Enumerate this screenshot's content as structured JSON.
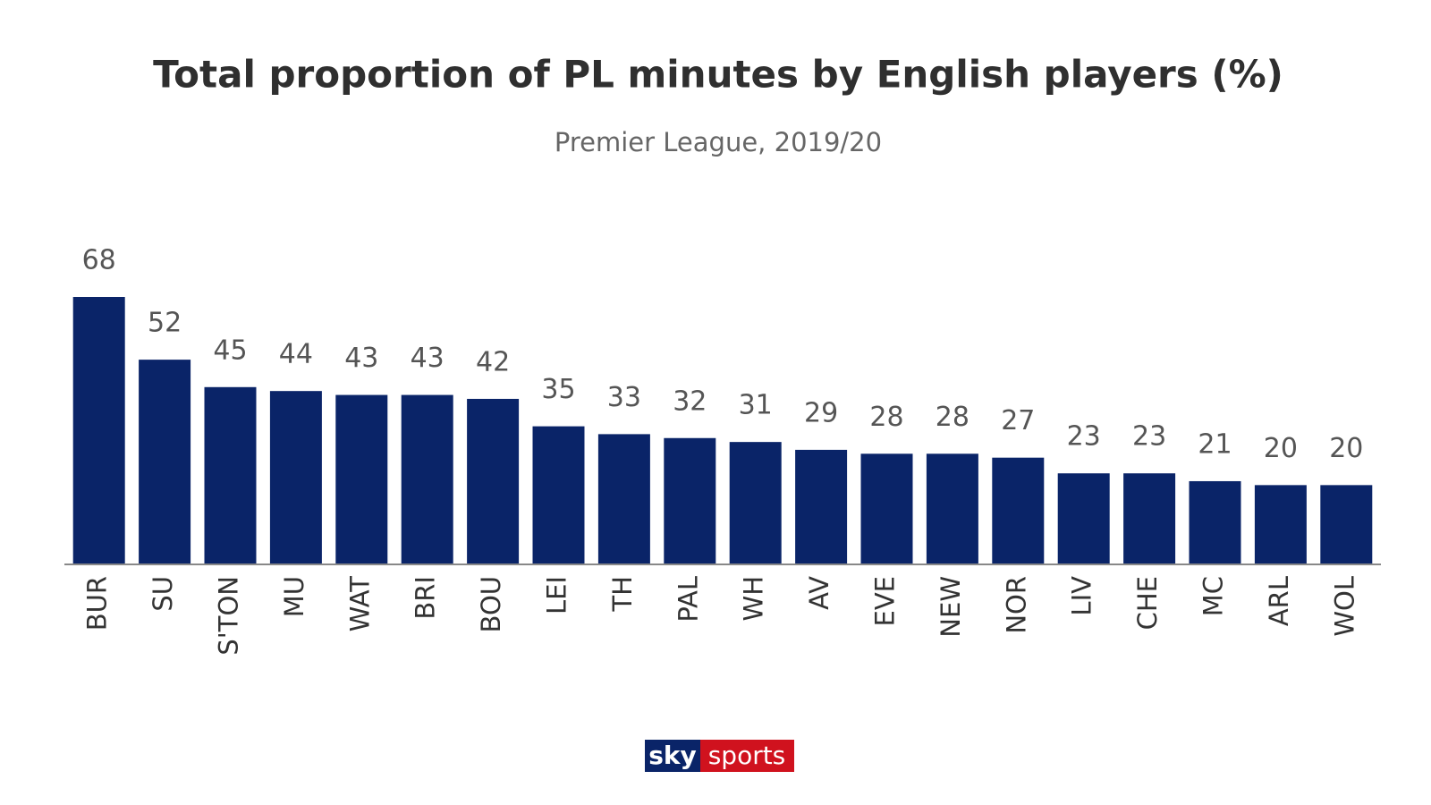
{
  "chart_data": {
    "type": "bar",
    "title": "Total proportion of PL minutes by English players (%)",
    "subtitle": "Premier League, 2019/20",
    "categories": [
      "BUR",
      "SU",
      "S'TON",
      "MU",
      "WAT",
      "BRI",
      "BOU",
      "LEI",
      "TH",
      "PAL",
      "WH",
      "AV",
      "EVE",
      "NEW",
      "NOR",
      "LIV",
      "CHE",
      "MC",
      "ARL",
      "WOL"
    ],
    "values": [
      68,
      52,
      45,
      44,
      43,
      43,
      42,
      35,
      33,
      32,
      31,
      29,
      28,
      28,
      27,
      23,
      23,
      21,
      20,
      20
    ],
    "color": "#0a2468"
  },
  "logo": {
    "sky": "sky",
    "sports": "sports"
  }
}
